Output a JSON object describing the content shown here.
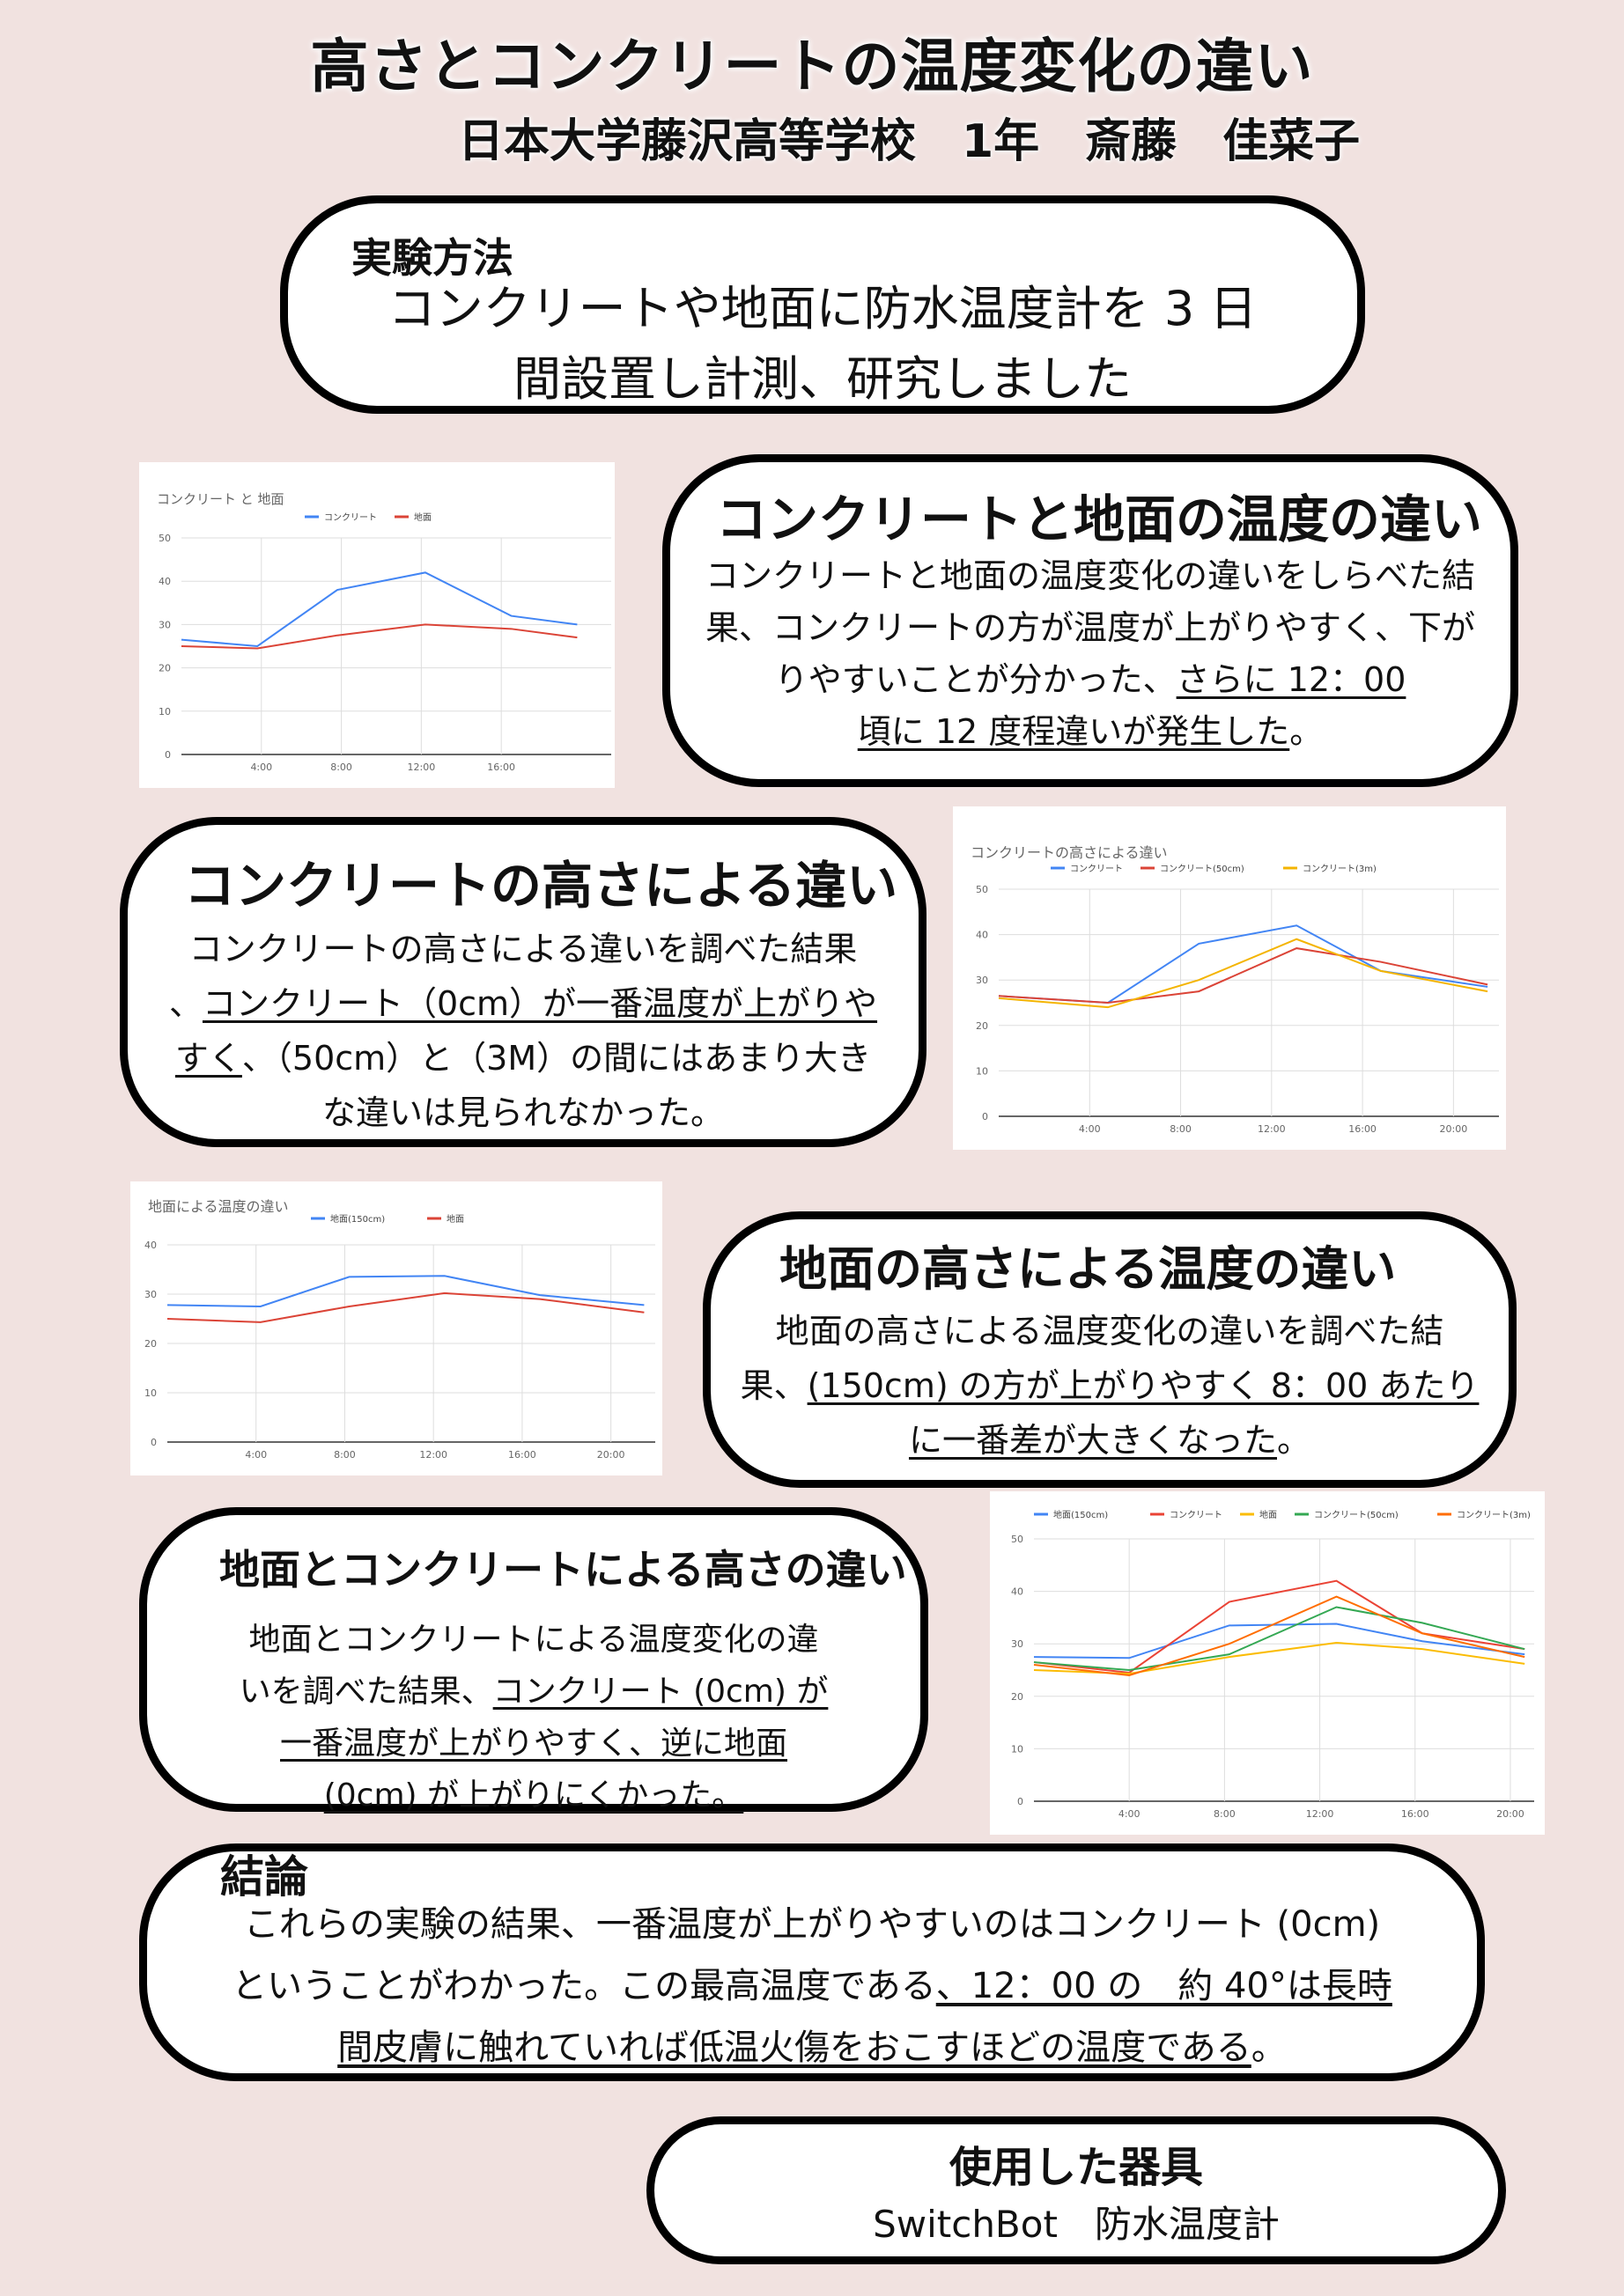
{
  "header": {
    "title": "高さとコンクリートの温度変化の違い",
    "subtitle": "日本大学藤沢高等学校　1年　斎藤　佳菜子"
  },
  "method": {
    "heading": "実験方法",
    "lines": [
      "コンクリートや地面に防水温度計を 3 日",
      "間設置し計測、研究しました"
    ]
  },
  "section1": {
    "heading": "コンクリートと地面の温度の違い",
    "lines": [
      "コンクリートと地面の温度変化の違いをしらべた結",
      "果、コンクリートの方が温度が上がりやすく、下が",
      "りやすいことが分かった、",
      "さらに 12：00",
      "頃に 12 度程違いが発生した",
      "。"
    ]
  },
  "section2": {
    "heading": "コンクリートの高さによる違い",
    "lines": [
      "コンクリートの高さによる違いを調べた結果",
      "、",
      "コンクリート（0cm）が一番温度が上がりや",
      "すく",
      "、（50cm）と（3M）の間にはあまり大き",
      "な違いは見られなかった。"
    ]
  },
  "section3": {
    "heading": "地面の高さによる温度の違い",
    "lines": [
      "地面の高さによる温度変化の違いを調べた結",
      "果、",
      "(150cm) の方が上がりやすく 8：00 あたり",
      "に一番差が大きくなった",
      "。"
    ]
  },
  "section4": {
    "heading": "地面とコンクリートによる高さの違い",
    "lines": [
      "地面とコンクリートによる温度変化の違",
      "いを調べた結果、",
      "コンクリート (0cm) が",
      "一番温度が上がりやすく、逆に地面",
      "(0cm) が上がりにくかった。"
    ]
  },
  "conclusion": {
    "heading": "結論",
    "lines": [
      "これらの実験の結果、一番温度が上がりやすいのはコンクリート (0cm)",
      "ということがわかった。この最高温度である",
      "、12：00 の　約 40°は長時",
      "間皮膚に触れていれば低温火傷をおこすほどの温度である",
      "。"
    ]
  },
  "equipment": {
    "heading": "使用した器具",
    "text": "SwitchBot　防水温度計"
  },
  "chart_data": [
    {
      "type": "line",
      "title": "コンクリート と 地面",
      "x": [
        "0:00",
        "4:00",
        "8:00",
        "12:00",
        "16:00",
        "20:00"
      ],
      "x_ticks": [
        "4:00",
        "8:00",
        "12:00",
        "16:00"
      ],
      "ylim": [
        0,
        50
      ],
      "y_ticks": [
        0,
        10,
        20,
        30,
        40,
        50
      ],
      "grid": true,
      "legend": "top-center",
      "series": [
        {
          "name": "コンクリート",
          "color": "#4285f4",
          "points": [
            [
              0,
              26.5
            ],
            [
              3.8,
              25
            ],
            [
              7.8,
              38
            ],
            [
              12.2,
              42
            ],
            [
              16.5,
              32
            ],
            [
              19.8,
              30
            ]
          ]
        },
        {
          "name": "地面",
          "color": "#db4437",
          "points": [
            [
              0,
              25
            ],
            [
              3.8,
              24.5
            ],
            [
              7.8,
              27.5
            ],
            [
              12.2,
              30
            ],
            [
              16.5,
              29
            ],
            [
              19.8,
              27
            ]
          ]
        }
      ]
    },
    {
      "type": "line",
      "title": "コンクリートの高さによる違い",
      "x_ticks": [
        "4:00",
        "8:00",
        "12:00",
        "16:00",
        "20:00"
      ],
      "ylim": [
        0,
        50
      ],
      "y_ticks": [
        0,
        10,
        20,
        30,
        40,
        50
      ],
      "grid": true,
      "legend": "top-center",
      "series": [
        {
          "name": "コンクリート",
          "color": "#4285f4",
          "points": [
            [
              0,
              26.5
            ],
            [
              4.8,
              25
            ],
            [
              8.8,
              38
            ],
            [
              13.1,
              42
            ],
            [
              16.8,
              32
            ],
            [
              21.5,
              28.5
            ]
          ]
        },
        {
          "name": "コンクリート(50cm)",
          "color": "#db4437",
          "points": [
            [
              0,
              26.5
            ],
            [
              4.8,
              25
            ],
            [
              8.8,
              27.5
            ],
            [
              13.1,
              37
            ],
            [
              16.8,
              34
            ],
            [
              21.5,
              29
            ]
          ]
        },
        {
          "name": "コンクリート(3m)",
          "color": "#f4b400",
          "points": [
            [
              0,
              26
            ],
            [
              4.8,
              24
            ],
            [
              8.8,
              30
            ],
            [
              13.1,
              39
            ],
            [
              16.8,
              32
            ],
            [
              21.5,
              27.5
            ]
          ]
        }
      ]
    },
    {
      "type": "line",
      "title": "地面による温度の違い",
      "x_ticks": [
        "4:00",
        "8:00",
        "12:00",
        "16:00",
        "20:00"
      ],
      "ylim": [
        0,
        40
      ],
      "y_ticks": [
        0,
        10,
        20,
        30,
        40
      ],
      "grid": true,
      "legend": "top-center",
      "series": [
        {
          "name": "地面(150cm)",
          "color": "#4285f4",
          "points": [
            [
              0,
              27.8
            ],
            [
              4.2,
              27.5
            ],
            [
              8.2,
              33.5
            ],
            [
              12.5,
              33.7
            ],
            [
              16.8,
              29.8
            ],
            [
              21.5,
              27.8
            ]
          ]
        },
        {
          "name": "地面",
          "color": "#db4437",
          "points": [
            [
              0,
              25
            ],
            [
              4.2,
              24.3
            ],
            [
              8.2,
              27.5
            ],
            [
              12.5,
              30.2
            ],
            [
              16.8,
              29
            ],
            [
              21.5,
              26.3
            ]
          ]
        }
      ]
    },
    {
      "type": "line",
      "title": "",
      "x_ticks": [
        "4:00",
        "8:00",
        "12:00",
        "16:00",
        "20:00"
      ],
      "ylim": [
        0,
        50
      ],
      "y_ticks": [
        0,
        10,
        20,
        30,
        40,
        50
      ],
      "grid": true,
      "legend": "top-left",
      "series": [
        {
          "name": "地面(150cm)",
          "color": "#4285f4",
          "points": [
            [
              0,
              27.5
            ],
            [
              4,
              27.3
            ],
            [
              8.2,
              33.5
            ],
            [
              12.7,
              33.8
            ],
            [
              16.3,
              30.5
            ],
            [
              20.6,
              28
            ]
          ]
        },
        {
          "name": "コンクリート",
          "color": "#ea4335",
          "points": [
            [
              0,
              26.5
            ],
            [
              4,
              24.5
            ],
            [
              8.2,
              38
            ],
            [
              12.7,
              42
            ],
            [
              16.3,
              32
            ],
            [
              20.6,
              29
            ]
          ]
        },
        {
          "name": "地面",
          "color": "#fbbc04",
          "points": [
            [
              0,
              25
            ],
            [
              4,
              24.3
            ],
            [
              8.2,
              27.5
            ],
            [
              12.7,
              30.2
            ],
            [
              16.3,
              29
            ],
            [
              20.6,
              26.2
            ]
          ]
        },
        {
          "name": "コンクリート(50cm)",
          "color": "#34a853",
          "points": [
            [
              0,
              26.5
            ],
            [
              4,
              25
            ],
            [
              8.2,
              28
            ],
            [
              12.7,
              37
            ],
            [
              16.3,
              34
            ],
            [
              20.6,
              29
            ]
          ]
        },
        {
          "name": "コンクリート(3m)",
          "color": "#ff6d01",
          "points": [
            [
              0,
              26
            ],
            [
              4,
              24
            ],
            [
              8.2,
              30
            ],
            [
              12.7,
              39
            ],
            [
              16.3,
              32
            ],
            [
              20.6,
              27.5
            ]
          ]
        }
      ]
    }
  ]
}
